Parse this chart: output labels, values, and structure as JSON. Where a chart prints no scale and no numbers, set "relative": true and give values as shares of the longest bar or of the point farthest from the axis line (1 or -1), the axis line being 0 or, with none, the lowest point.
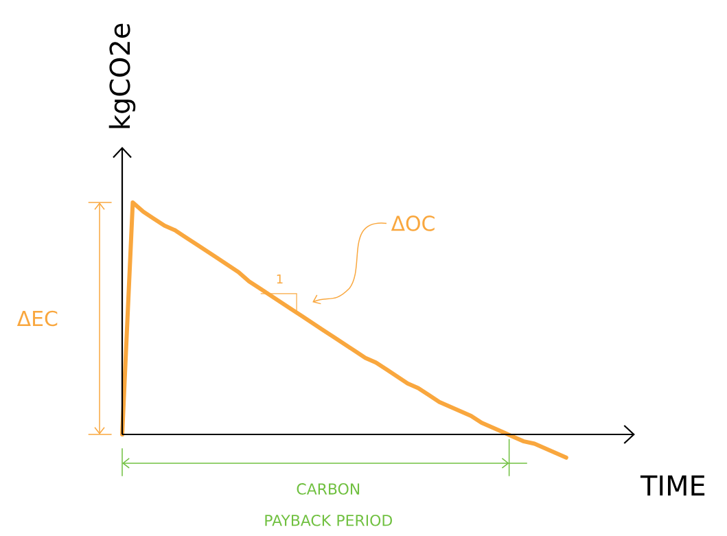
{
  "chart_data": {
    "type": "line",
    "relative": true,
    "xlabel": "TIME",
    "ylabel": "kgCO2e",
    "categories": [
      null,
      null,
      null,
      null,
      null,
      null,
      null,
      null,
      null,
      null,
      null,
      null,
      null,
      null,
      null,
      null,
      null,
      null,
      null,
      null,
      null,
      null,
      null,
      null,
      null,
      null,
      null,
      null,
      null,
      null,
      null,
      null,
      null,
      null,
      null,
      null,
      null,
      null,
      null,
      null,
      null,
      null,
      null
    ],
    "series": [
      {
        "color": "#f9a73e",
        "values": [
          0,
          1,
          0.96,
          0.93,
          0.9,
          0.88,
          0.85,
          0.82,
          0.79,
          0.76,
          0.73,
          0.7,
          0.66,
          0.63,
          0.6,
          0.57,
          0.54,
          0.51,
          0.48,
          0.45,
          0.42,
          0.39,
          0.36,
          0.33,
          0.31,
          0.28,
          0.25,
          0.22,
          0.2,
          0.17,
          0.14,
          0.12,
          0.1,
          0.08,
          0.05,
          0.03,
          0.01,
          -0.01,
          -0.03,
          -0.04,
          -0.06,
          -0.08,
          -0.1
        ]
      }
    ],
    "annotations": [
      "ΔEC",
      "ΔOC",
      "1",
      "CARBON PAYBACK PERIOD"
    ]
  }
}
